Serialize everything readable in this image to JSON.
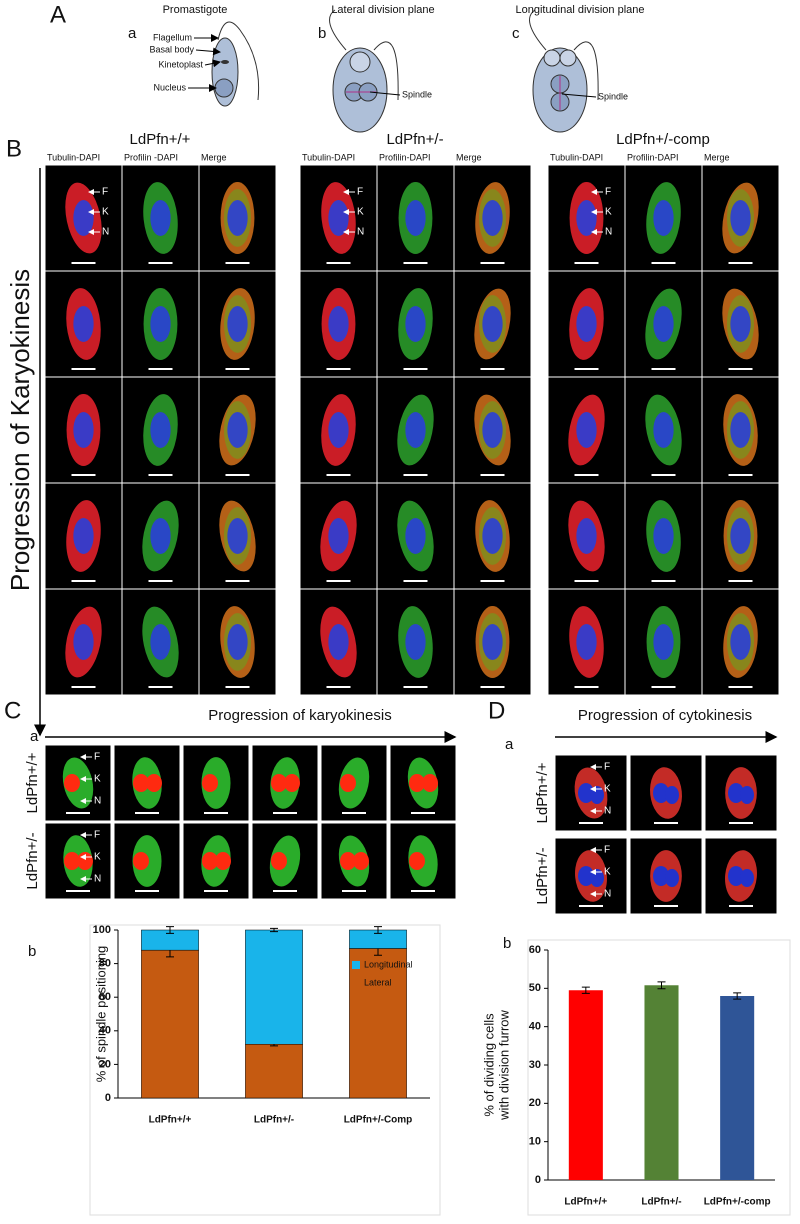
{
  "figure": {
    "A": {
      "label": "A",
      "schematics": [
        {
          "letter": "a",
          "title": "Promastigote",
          "labels": [
            "Flagellum",
            "Basal body",
            "Kinetoplast",
            "Nucleus"
          ]
        },
        {
          "letter": "b",
          "title": "Lateral division plane",
          "labels": [
            "Spindle"
          ]
        },
        {
          "letter": "c",
          "title": "Longitudinal division plane",
          "labels": [
            "Spindle"
          ]
        }
      ]
    },
    "B": {
      "label": "B",
      "side_label": "Progression of Karyokinesis",
      "groups": [
        {
          "title": "LdPfn+/+",
          "columns": [
            "Tubulin-DAPI",
            "Profilin -DAPI",
            "Merge"
          ],
          "markers": [
            "F",
            "K",
            "N"
          ]
        },
        {
          "title": "LdPfn+/-",
          "columns": [
            "Tubulin-DAPI",
            "Profilin-DAPI",
            "Merge"
          ],
          "markers": [
            "F",
            "K",
            "N"
          ]
        },
        {
          "title": "LdPfn+/-comp",
          "columns": [
            "Tubulin-DAPI",
            "Profilin-DAPI",
            "Merge"
          ],
          "markers": [
            "F",
            "K",
            "N"
          ]
        }
      ]
    },
    "C": {
      "label": "C",
      "sub_a": "a",
      "sub_b": "b",
      "title": "Progression of karyokinesis",
      "rows": [
        {
          "title": "LdPfn+/+",
          "markers": [
            "F",
            "K",
            "N"
          ]
        },
        {
          "title": "LdPfn+/-",
          "markers": [
            "F",
            "K",
            "N"
          ]
        }
      ]
    },
    "D": {
      "label": "D",
      "sub_a": "a",
      "sub_b": "b",
      "title": "Progression of cytokinesis",
      "rows": [
        {
          "title": "LdPfn+/+",
          "markers": [
            "F",
            "K",
            "N"
          ]
        },
        {
          "title": "LdPfn+/-",
          "markers": [
            "F",
            "K",
            "N"
          ]
        }
      ]
    }
  },
  "chart_data": [
    {
      "type": "stacked-bar",
      "y_label": "% of spindle positioning",
      "categories": [
        "LdPfn+/+",
        "LdPfn+/-",
        "LdPfn+/-Comp"
      ],
      "series": [
        {
          "name": "Lateral",
          "color": "#c55a11",
          "values": [
            88,
            32,
            89
          ],
          "errors": [
            4,
            1,
            4
          ]
        },
        {
          "name": "Longitudinal",
          "color": "#19b4ea",
          "values": [
            12,
            68,
            11
          ],
          "errors": [
            2,
            1,
            2
          ]
        }
      ],
      "ylim": [
        0,
        100
      ],
      "yticks": [
        0,
        20,
        40,
        60,
        80,
        100
      ]
    },
    {
      "type": "bar",
      "y_label": [
        "% of dividing cells",
        "with division furrow"
      ],
      "categories": [
        "LdPfn+/+",
        "LdPfn+/-",
        "LdPfn+/-comp"
      ],
      "values": [
        49.5,
        50.8,
        48
      ],
      "errors": [
        0.8,
        0.9,
        0.8
      ],
      "colors": [
        "#ff0000",
        "#548235",
        "#2f5597"
      ],
      "ylim": [
        0,
        60
      ],
      "yticks": [
        0,
        10,
        20,
        30,
        40,
        50,
        60
      ]
    }
  ]
}
